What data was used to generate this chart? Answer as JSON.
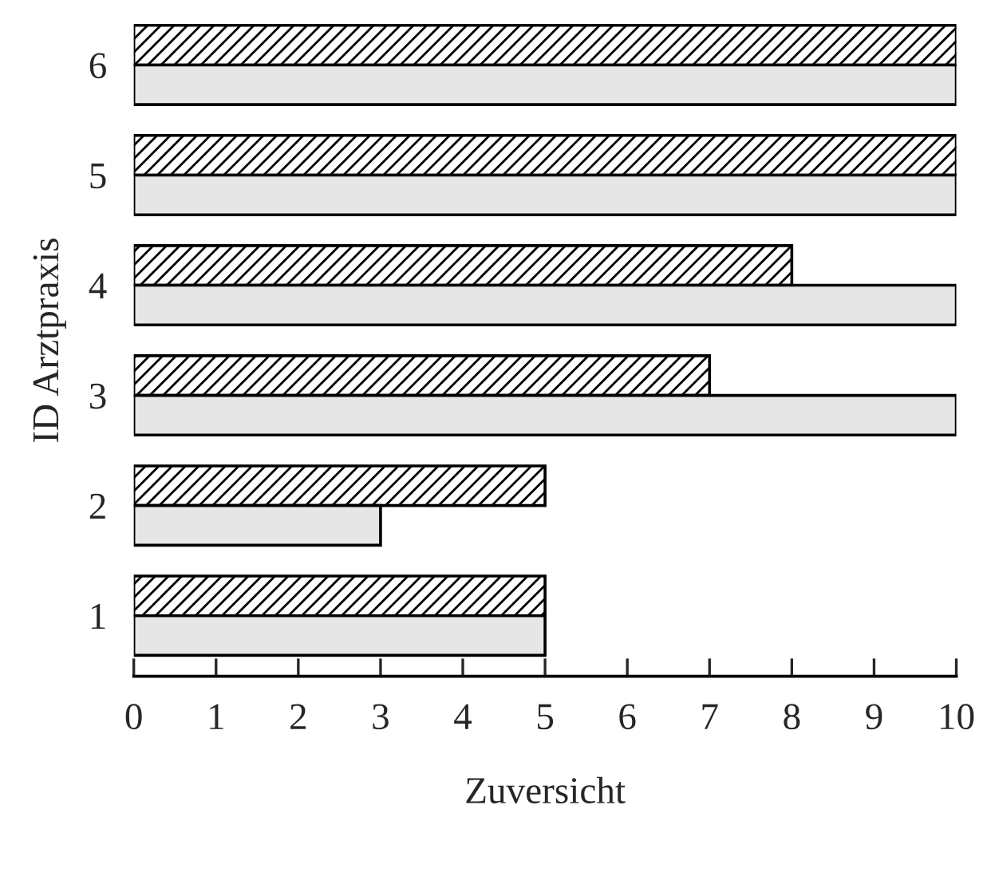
{
  "chart_data": {
    "type": "bar",
    "orientation": "horizontal",
    "xlabel": "Zuversicht",
    "ylabel": "ID Arztpraxis",
    "categories": [
      "6",
      "5",
      "4",
      "3",
      "2",
      "1"
    ],
    "series": [
      {
        "color": "#000000",
        "values": [
          10,
          10,
          8,
          7,
          5,
          5
        ]
      },
      {
        "color": "#e6e6e6",
        "values": [
          10,
          10,
          10,
          10,
          3,
          5
        ]
      }
    ],
    "xlim": [
      0,
      10
    ],
    "xticks": [
      0,
      1,
      2,
      3,
      4,
      5,
      6,
      7,
      8,
      9,
      10
    ],
    "grid": false,
    "legend": false
  }
}
